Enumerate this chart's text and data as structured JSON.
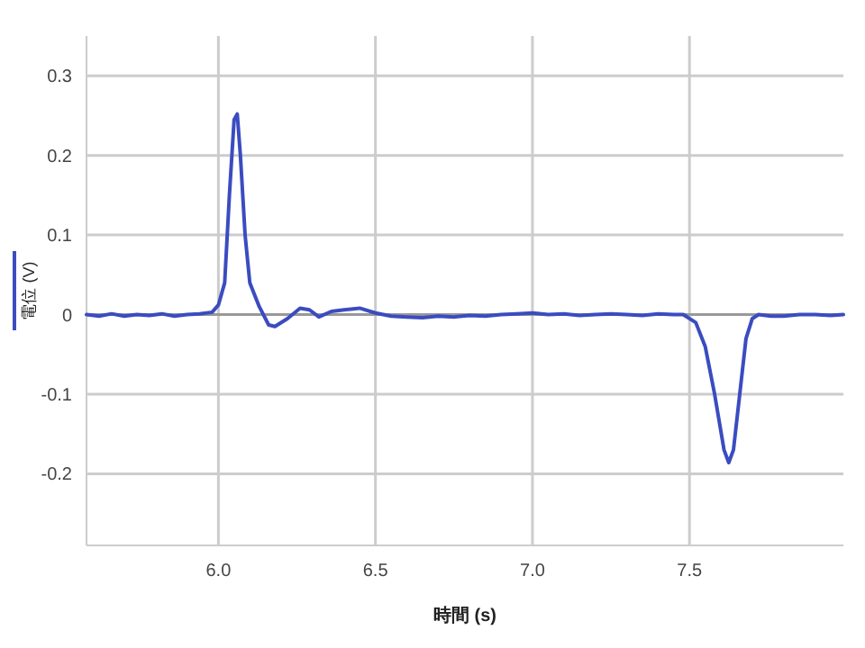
{
  "chart_data": {
    "type": "line",
    "xlabel": "時間 (s)",
    "legend": "left",
    "grid": true,
    "line_style": "solid",
    "marker": "none",
    "xlim": [
      5.58,
      7.99
    ],
    "ylim": [
      -0.29,
      0.35
    ],
    "xticks": [
      {
        "value": 6,
        "label": "6.0"
      },
      6.5,
      {
        "value": 7,
        "label": "7.0"
      },
      7.5
    ],
    "yticks": [
      -0.2,
      -0.1,
      0,
      0.1,
      0.2,
      0.3
    ],
    "series": [
      {
        "name": "電位 (V)",
        "color": "#3b4cc0",
        "x": [
          5.58,
          5.62,
          5.66,
          5.7,
          5.74,
          5.78,
          5.82,
          5.86,
          5.9,
          5.94,
          5.98,
          6.0,
          6.02,
          6.035,
          6.05,
          6.06,
          6.07,
          6.085,
          6.1,
          6.13,
          6.16,
          6.18,
          6.22,
          6.26,
          6.29,
          6.32,
          6.36,
          6.4,
          6.45,
          6.5,
          6.55,
          6.6,
          6.65,
          6.7,
          6.75,
          6.8,
          6.85,
          6.9,
          6.95,
          7.0,
          7.05,
          7.1,
          7.15,
          7.2,
          7.25,
          7.3,
          7.35,
          7.4,
          7.45,
          7.48,
          7.52,
          7.55,
          7.58,
          7.61,
          7.625,
          7.64,
          7.66,
          7.68,
          7.7,
          7.72,
          7.76,
          7.8,
          7.85,
          7.9,
          7.95,
          7.99
        ],
        "values": [
          0,
          -0.002,
          0.001,
          -0.002,
          0,
          -0.001,
          0.001,
          -0.002,
          0,
          0.001,
          0.003,
          0.012,
          0.04,
          0.15,
          0.245,
          0.252,
          0.2,
          0.1,
          0.04,
          0.01,
          -0.013,
          -0.015,
          -0.005,
          0.008,
          0.006,
          -0.003,
          0.004,
          0.006,
          0.008,
          0.002,
          -0.002,
          -0.003,
          -0.004,
          -0.002,
          -0.003,
          -0.001,
          -0.002,
          0,
          0.001,
          0.002,
          0,
          0.001,
          -0.001,
          0,
          0.001,
          0,
          -0.001,
          0.001,
          0,
          0,
          -0.01,
          -0.04,
          -0.1,
          -0.17,
          -0.186,
          -0.17,
          -0.1,
          -0.03,
          -0.005,
          0,
          -0.002,
          -0.002,
          0,
          0,
          -0.001,
          0
        ]
      }
    ]
  }
}
